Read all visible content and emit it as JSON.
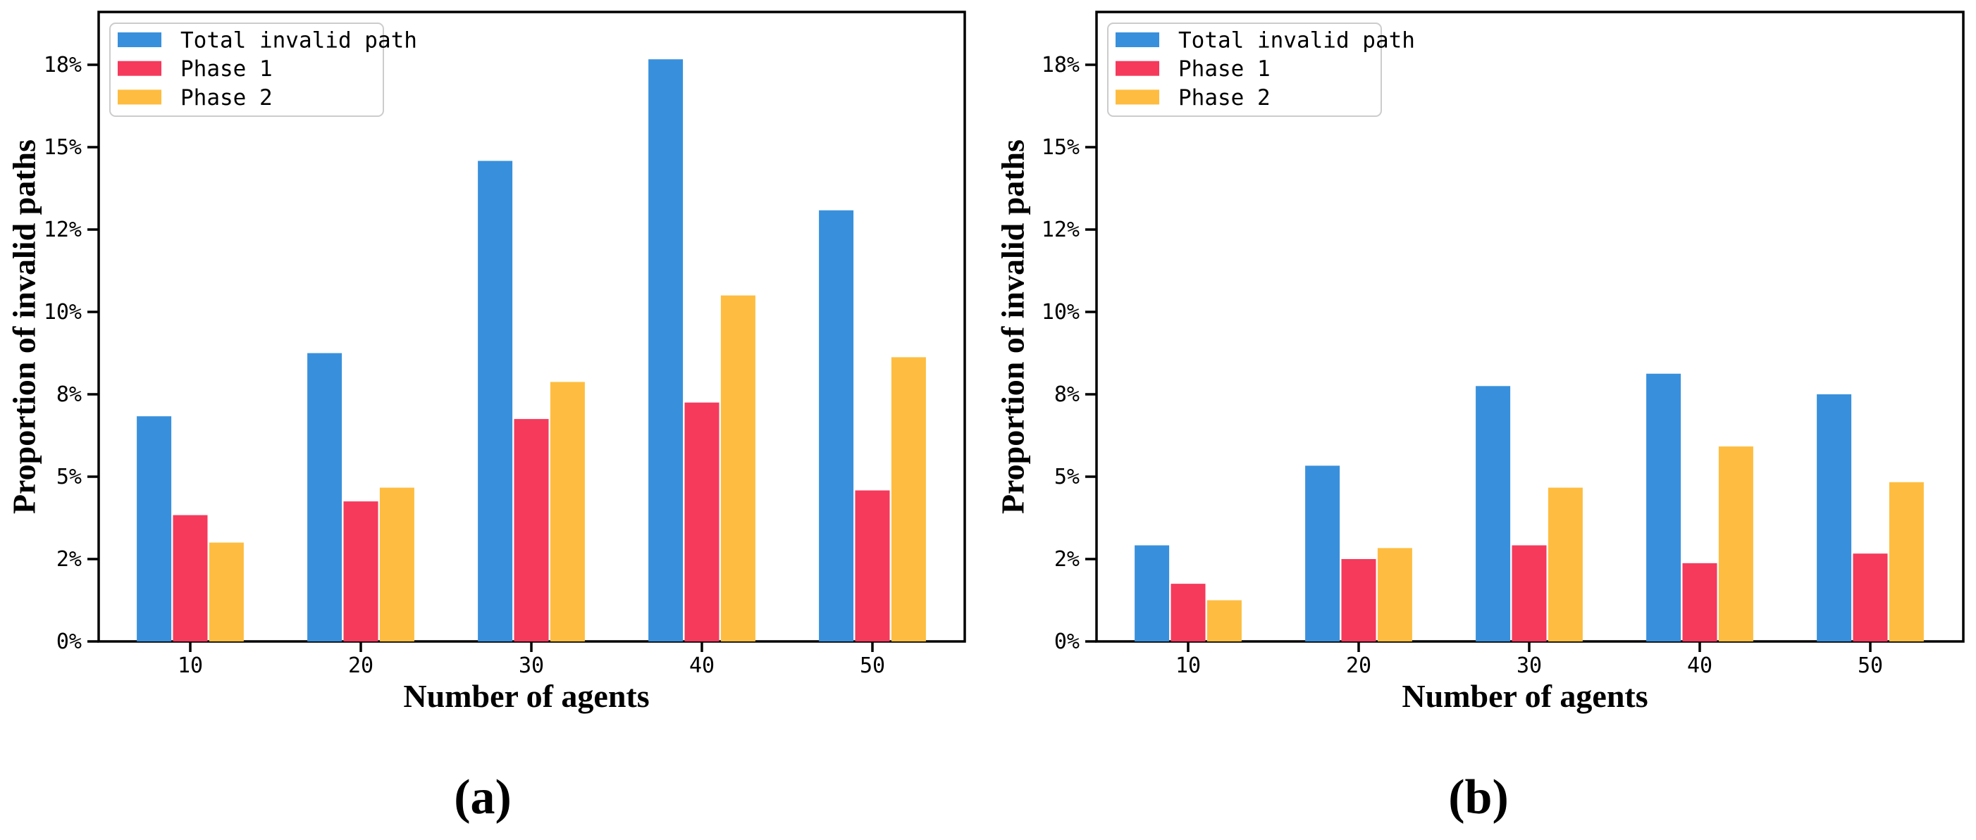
{
  "figure": {
    "background": "#ffffff",
    "axis_color": "#000000",
    "legend_border_color": "#cccccc"
  },
  "chart_data": [
    {
      "type": "bar",
      "panel": "a",
      "caption": "(a)",
      "xlabel": "Number of agents",
      "ylabel": "Proportion of invalid paths",
      "categories": [
        "10",
        "20",
        "30",
        "40",
        "50"
      ],
      "y_tick_labels": [
        "0%",
        "2%",
        "5%",
        "8%",
        "10%",
        "12%",
        "15%",
        "18%"
      ],
      "y_tick_values": [
        0,
        2,
        5,
        8,
        10,
        12,
        15,
        18
      ],
      "grid": "off",
      "legend_position": "upper left",
      "series": [
        {
          "name": "Total invalid path",
          "color": "#3890DC",
          "values": [
            7.2,
            9.0,
            14.5,
            18.2,
            12.7
          ]
        },
        {
          "name": "Phase 1",
          "color": "#F53A5C",
          "values": [
            3.6,
            4.1,
            7.1,
            7.7,
            4.5
          ]
        },
        {
          "name": "Phase 2",
          "color": "#FEBD40",
          "values": [
            2.6,
            4.6,
            8.3,
            10.4,
            8.9
          ]
        }
      ]
    },
    {
      "type": "bar",
      "panel": "b",
      "caption": "(b)",
      "xlabel": "Number of agents",
      "ylabel": "Proportion of invalid paths",
      "categories": [
        "10",
        "20",
        "30",
        "40",
        "50"
      ],
      "y_tick_labels": [
        "0%",
        "2%",
        "5%",
        "8%",
        "10%",
        "12%",
        "15%",
        "18%"
      ],
      "y_tick_values": [
        0,
        2,
        5,
        8,
        10,
        12,
        15,
        18
      ],
      "grid": "off",
      "legend_position": "upper left",
      "series": [
        {
          "name": "Total invalid path",
          "color": "#3890DC",
          "values": [
            2.5,
            5.4,
            8.2,
            8.5,
            8.0
          ]
        },
        {
          "name": "Phase 1",
          "color": "#F53A5C",
          "values": [
            1.4,
            2.0,
            2.5,
            1.9,
            2.2
          ]
        },
        {
          "name": "Phase 2",
          "color": "#FEBD40",
          "values": [
            1.0,
            2.4,
            4.6,
            6.1,
            4.8
          ]
        }
      ]
    }
  ]
}
